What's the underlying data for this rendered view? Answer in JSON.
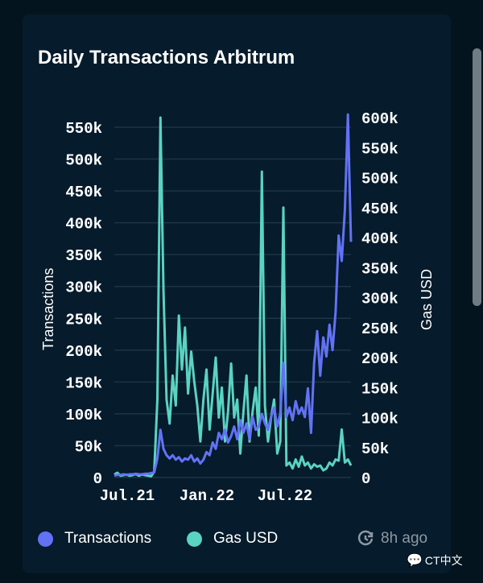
{
  "title": "Daily Transactions Arbitrum",
  "updated": "8h ago",
  "watermark": "CT中文",
  "colors": {
    "transactions": "#6272f5",
    "gas": "#5ad3c2",
    "grid": "#1d3547"
  },
  "chart_data": {
    "type": "line",
    "title": "Daily Transactions Arbitrum",
    "x_start": "2021-06-25",
    "x_step": "weekly",
    "x_ticks": [
      "Jul.21",
      "Jan.22",
      "Jul.22"
    ],
    "left_axis": {
      "label": "Transactions",
      "ylim": [
        0,
        550
      ],
      "ticks": [
        "0",
        "50k",
        "100k",
        "150k",
        "200k",
        "250k",
        "300k",
        "350k",
        "400k",
        "450k",
        "500k",
        "550k"
      ]
    },
    "right_axis": {
      "label": "Gas USD",
      "ylim": [
        0,
        600
      ],
      "ticks": [
        "0",
        "50k",
        "100k",
        "150k",
        "200k",
        "250k",
        "300k",
        "350k",
        "400k",
        "450k",
        "500k",
        "550k",
        "600k"
      ]
    },
    "legend": "bottom-left",
    "series": [
      {
        "name": "Transactions",
        "axis": "left",
        "unit": "k",
        "values": [
          3,
          4,
          4,
          5,
          4,
          5,
          5,
          6,
          5,
          5,
          6,
          6,
          7,
          8,
          30,
          75,
          45,
          35,
          30,
          35,
          28,
          32,
          25,
          30,
          28,
          35,
          25,
          30,
          22,
          28,
          40,
          35,
          55,
          45,
          70,
          60,
          75,
          55,
          65,
          80,
          60,
          90,
          70,
          85,
          60,
          95,
          75,
          80,
          100,
          85,
          75,
          95,
          110,
          80,
          100,
          180,
          95,
          110,
          90,
          120,
          100,
          110,
          95,
          140,
          70,
          180,
          230,
          160,
          220,
          190,
          240,
          200,
          260,
          380,
          340,
          420,
          570,
          370
        ]
      },
      {
        "name": "Gas USD",
        "axis": "right",
        "unit": "k",
        "values": [
          5,
          8,
          3,
          4,
          5,
          3,
          4,
          6,
          3,
          5,
          4,
          3,
          2,
          10,
          130,
          600,
          310,
          130,
          90,
          170,
          120,
          270,
          180,
          250,
          140,
          210,
          160,
          120,
          60,
          130,
          180,
          80,
          140,
          200,
          100,
          150,
          60,
          110,
          190,
          100,
          130,
          40,
          110,
          170,
          60,
          110,
          150,
          70,
          510,
          120,
          60,
          100,
          130,
          40,
          60,
          450,
          20,
          25,
          15,
          30,
          18,
          35,
          20,
          25,
          15,
          22,
          18,
          20,
          12,
          15,
          25,
          20,
          30,
          28,
          80,
          25,
          30,
          20
        ]
      }
    ]
  }
}
